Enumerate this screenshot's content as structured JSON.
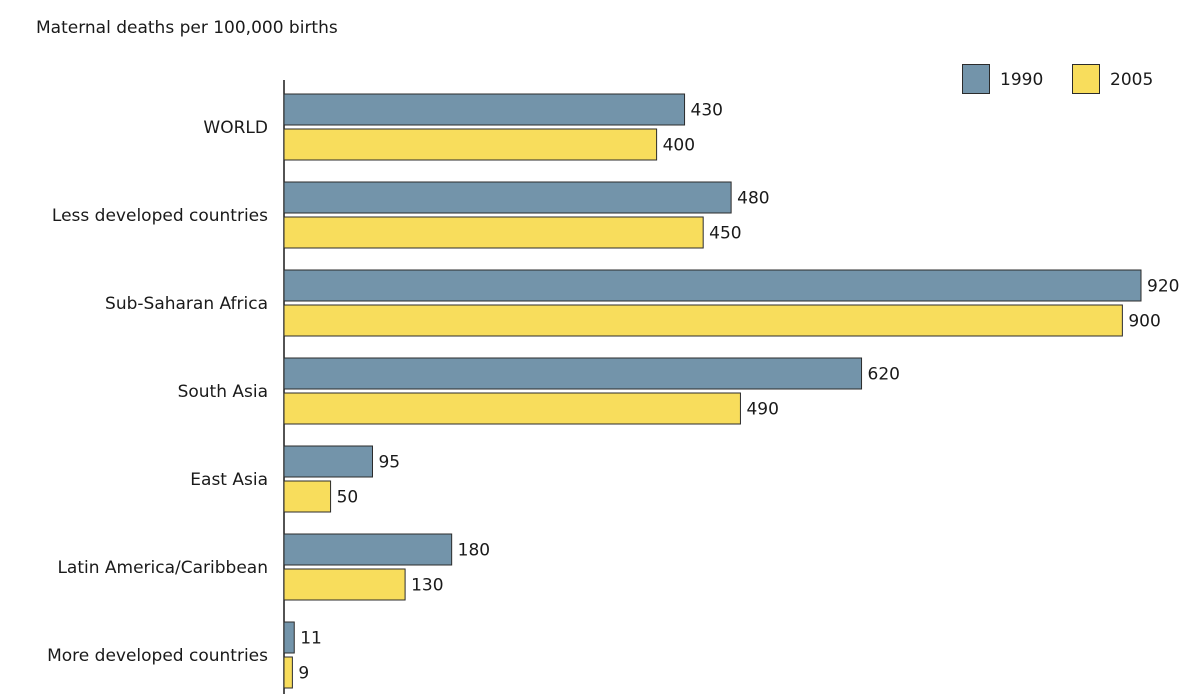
{
  "chart_data": {
    "type": "bar",
    "orientation": "horizontal",
    "title": "Maternal deaths per 100,000 births",
    "categories": [
      "WORLD",
      "Less developed countries",
      "Sub-Saharan Africa",
      "South Asia",
      "East Asia",
      "Latin America/Caribbean",
      "More developed countries"
    ],
    "series": [
      {
        "name": "1990",
        "color": "#7394aa",
        "values": [
          430,
          480,
          920,
          620,
          95,
          180,
          11
        ]
      },
      {
        "name": "2005",
        "color": "#f8dd5c",
        "values": [
          400,
          450,
          900,
          490,
          50,
          130,
          9
        ]
      }
    ],
    "xlim": [
      0,
      920
    ],
    "grid": false,
    "legend_position": "top-right",
    "data_labels": true
  }
}
